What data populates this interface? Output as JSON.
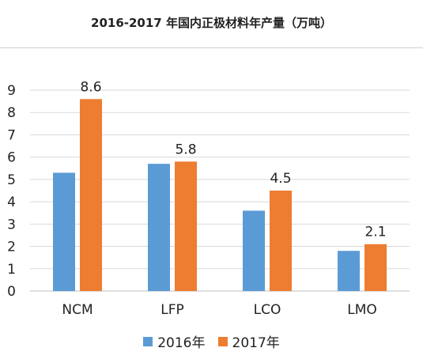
{
  "chart_data": {
    "type": "bar",
    "title": "2016-2017 年国内正极材料年产量（万吨）",
    "categories": [
      "NCM",
      "LFP",
      "LCO",
      "LMO"
    ],
    "series": [
      {
        "name": "2016年",
        "values": [
          5.3,
          5.7,
          3.6,
          1.8
        ],
        "color": "#5b9bd5"
      },
      {
        "name": "2017年",
        "values": [
          8.6,
          5.8,
          4.5,
          2.1
        ],
        "color": "#ed7d31"
      }
    ],
    "data_labels": {
      "series_index": 1,
      "labels": [
        "8.6",
        "5.8",
        "4.5",
        "2.1"
      ]
    },
    "y_ticks": [
      "0",
      "1",
      "2",
      "3",
      "4",
      "5",
      "6",
      "7",
      "8",
      "9"
    ],
    "ylim": [
      0,
      9
    ],
    "grid": true,
    "legend_position": "bottom",
    "xlabel": "",
    "ylabel": ""
  }
}
